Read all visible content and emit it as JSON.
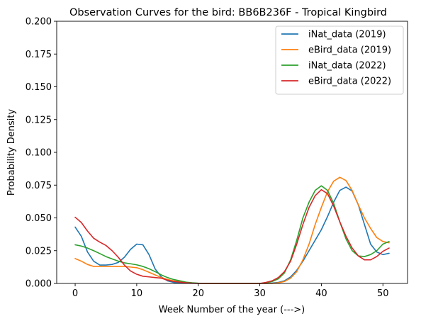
{
  "chart_data": {
    "type": "line",
    "title": "Observation Curves for the bird: BB6B236F - Tropical Kingbird",
    "xlabel": "Week Number of the year (--->)",
    "ylabel": "Probability Density",
    "xlim": [
      -3,
      54
    ],
    "ylim": [
      0,
      0.2
    ],
    "x_ticks": [
      0,
      10,
      20,
      30,
      40,
      50
    ],
    "y_ticks": [
      0.0,
      0.025,
      0.05,
      0.075,
      0.1,
      0.125,
      0.15,
      0.175,
      0.2
    ],
    "x_tick_labels": [
      "0",
      "10",
      "20",
      "30",
      "40",
      "50"
    ],
    "y_tick_labels": [
      "0.000",
      "0.025",
      "0.050",
      "0.075",
      "0.100",
      "0.125",
      "0.150",
      "0.175",
      "0.200"
    ],
    "grid": false,
    "legend_position": "top-right",
    "x": [
      0,
      1,
      2,
      3,
      4,
      5,
      6,
      7,
      8,
      9,
      10,
      11,
      12,
      13,
      14,
      15,
      16,
      17,
      18,
      19,
      20,
      21,
      22,
      23,
      24,
      25,
      26,
      27,
      28,
      29,
      30,
      31,
      32,
      33,
      34,
      35,
      36,
      37,
      38,
      39,
      40,
      41,
      42,
      43,
      44,
      45,
      46,
      47,
      48,
      49,
      50,
      51
    ],
    "series": [
      {
        "name": "iNat_data (2019)",
        "color": "#1f77b4",
        "values": [
          0.043,
          0.036,
          0.024,
          0.017,
          0.014,
          0.014,
          0.0145,
          0.016,
          0.02,
          0.026,
          0.03,
          0.0295,
          0.022,
          0.011,
          0.005,
          0.002,
          0.0008,
          0.0004,
          0.0002,
          0.0001,
          0.0,
          0.0,
          0.0,
          0.0,
          0.0,
          0.0,
          0.0,
          0.0,
          0.0,
          0.0,
          0.0,
          0.0,
          0.0003,
          0.0008,
          0.002,
          0.005,
          0.01,
          0.017,
          0.025,
          0.033,
          0.041,
          0.051,
          0.062,
          0.071,
          0.0735,
          0.0705,
          0.06,
          0.045,
          0.03,
          0.024,
          0.022,
          0.023
        ]
      },
      {
        "name": "eBird_data (2019)",
        "color": "#ff7f0e",
        "values": [
          0.019,
          0.017,
          0.0145,
          0.013,
          0.013,
          0.013,
          0.013,
          0.013,
          0.013,
          0.0125,
          0.012,
          0.0105,
          0.0085,
          0.0065,
          0.0045,
          0.003,
          0.002,
          0.0012,
          0.0007,
          0.0003,
          0.0001,
          0.0,
          0.0,
          0.0,
          0.0,
          0.0,
          0.0,
          0.0,
          0.0,
          0.0,
          0.0,
          0.0,
          0.0,
          0.0005,
          0.0015,
          0.004,
          0.009,
          0.018,
          0.03,
          0.045,
          0.058,
          0.07,
          0.078,
          0.081,
          0.0785,
          0.071,
          0.06,
          0.05,
          0.042,
          0.035,
          0.032,
          0.031
        ]
      },
      {
        "name": "iNat_data (2022)",
        "color": "#2ca02c",
        "values": [
          0.0295,
          0.0285,
          0.027,
          0.025,
          0.0228,
          0.0205,
          0.0187,
          0.017,
          0.0157,
          0.015,
          0.0142,
          0.013,
          0.0112,
          0.009,
          0.0065,
          0.0045,
          0.003,
          0.002,
          0.001,
          0.0005,
          0.0002,
          0.0001,
          0.0,
          0.0,
          0.0,
          0.0,
          0.0,
          0.0,
          0.0,
          0.0,
          0.0,
          0.0005,
          0.0015,
          0.0035,
          0.008,
          0.018,
          0.033,
          0.05,
          0.062,
          0.071,
          0.0745,
          0.071,
          0.061,
          0.047,
          0.034,
          0.025,
          0.021,
          0.0205,
          0.022,
          0.025,
          0.03,
          0.032
        ]
      },
      {
        "name": "eBird_data (2022)",
        "color": "#d62728",
        "values": [
          0.0505,
          0.0465,
          0.04,
          0.0345,
          0.0315,
          0.029,
          0.025,
          0.02,
          0.014,
          0.0095,
          0.007,
          0.0055,
          0.005,
          0.0045,
          0.004,
          0.0025,
          0.0015,
          0.001,
          0.0005,
          0.0002,
          0.0,
          0.0,
          0.0,
          0.0,
          0.0,
          0.0,
          0.0,
          0.0,
          0.0,
          0.0,
          0.0,
          0.0008,
          0.002,
          0.0045,
          0.009,
          0.017,
          0.03,
          0.045,
          0.058,
          0.067,
          0.0715,
          0.0685,
          0.059,
          0.047,
          0.036,
          0.027,
          0.021,
          0.018,
          0.018,
          0.0205,
          0.0245,
          0.027
        ]
      }
    ]
  }
}
